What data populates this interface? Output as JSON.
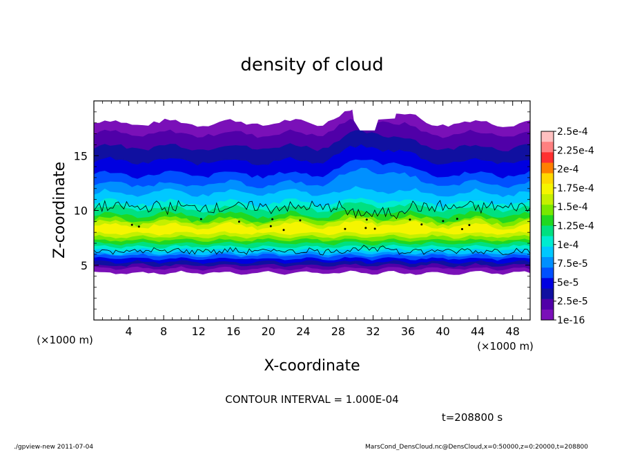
{
  "chart_data": {
    "type": "heatmap",
    "title": "density of cloud",
    "xlabel": "X-coordinate",
    "ylabel": "Z-coordinate",
    "x_unit": "(×1000 m)",
    "z_unit": "(×1000 m)",
    "xlim": [
      0,
      50
    ],
    "ylim": [
      0,
      20
    ],
    "x_ticks": [
      4,
      8,
      12,
      16,
      20,
      24,
      28,
      32,
      36,
      40,
      44,
      48
    ],
    "y_ticks": [
      5,
      10,
      15
    ],
    "colorbar": {
      "labels": [
        "2.5e-4",
        "2.25e-4",
        "2e-4",
        "1.75e-4",
        "1.5e-4",
        "1.25e-4",
        "1e-4",
        "7.5e-5",
        "5e-5",
        "2.5e-5",
        "1e-16"
      ],
      "colors": [
        "#ffc0c0",
        "#ff8080",
        "#ff3030",
        "#ff8000",
        "#ffd800",
        "#f5f500",
        "#c4f000",
        "#78e800",
        "#20d820",
        "#00e080",
        "#00ecd0",
        "#00c8ff",
        "#0090ff",
        "#0050ff",
        "#0000e0",
        "#1010a0",
        "#5000a8",
        "#7a10b8"
      ]
    },
    "contour_levels": [
      0.0001
    ],
    "contour_interval_text": "CONTOUR INTERVAL = 1.000E-04",
    "time_text": "t=208800 s",
    "layers": [
      {
        "z_bottom": 4.3,
        "z_top": 18.0,
        "color": "#7a10b8"
      },
      {
        "z_bottom": 4.7,
        "z_top": 17.0,
        "color": "#5000a8"
      },
      {
        "z_bottom": 5.0,
        "z_top": 15.8,
        "color": "#1010a0"
      },
      {
        "z_bottom": 5.3,
        "z_top": 14.5,
        "color": "#0000e0"
      },
      {
        "z_bottom": 5.6,
        "z_top": 13.3,
        "color": "#0050ff"
      },
      {
        "z_bottom": 5.9,
        "z_top": 12.4,
        "color": "#0090ff"
      },
      {
        "z_bottom": 6.1,
        "z_top": 11.6,
        "color": "#00c8ff"
      },
      {
        "z_bottom": 6.4,
        "z_top": 10.7,
        "color": "#00ecd0"
      },
      {
        "z_bottom": 6.7,
        "z_top": 10.2,
        "color": "#00e080"
      },
      {
        "z_bottom": 7.0,
        "z_top": 9.6,
        "color": "#20d820"
      },
      {
        "z_bottom": 7.3,
        "z_top": 9.2,
        "color": "#78e800"
      },
      {
        "z_bottom": 7.6,
        "z_top": 8.9,
        "color": "#c4f000"
      },
      {
        "z_bottom": 7.9,
        "z_top": 8.6,
        "color": "#f5f500"
      }
    ]
  },
  "footer": {
    "left": "./gpview-new   2011-07-04",
    "right": "MarsCond_DensCloud.nc@DensCloud,x=0:50000,z=0:20000,t=208800"
  }
}
